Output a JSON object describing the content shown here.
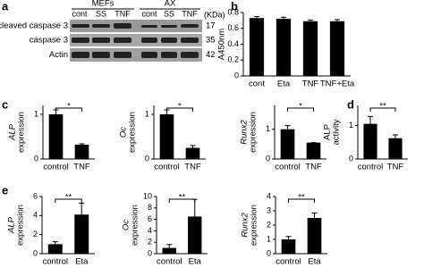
{
  "panels": [
    "a",
    "b",
    "c",
    "d",
    "e"
  ],
  "blot": {
    "groups": [
      "MEFs",
      "AX"
    ],
    "lanes": [
      "cont",
      "SS",
      "TNF",
      "cont",
      "SS",
      "TNF"
    ],
    "unit": "(KDa)",
    "rows": [
      {
        "label": "cleaved caspase 3",
        "kda": "17"
      },
      {
        "label": "caspase 3",
        "kda": "35"
      },
      {
        "label": "Actin",
        "kda": "42"
      }
    ]
  },
  "chart_data": [
    {
      "type": "bar",
      "y_label": [
        "A450nm"
      ],
      "categories": [
        "cont",
        "Eta",
        "TNF",
        "TNF+Eta"
      ],
      "values": [
        0.73,
        0.72,
        0.69,
        0.69
      ],
      "errors": [
        0.02,
        0.02,
        0.015,
        0.02
      ],
      "ylim": [
        0,
        0.8
      ],
      "yticks": [
        0,
        0.2,
        0.4,
        0.6,
        0.8
      ],
      "color": "#000000"
    },
    {
      "type": "bar",
      "y_label": [
        "ALP",
        "expression"
      ],
      "italic_first": true,
      "categories": [
        "control",
        "TNF"
      ],
      "values": [
        1.0,
        0.32
      ],
      "errors": [
        0.1,
        0.02
      ],
      "ylim": [
        0,
        1.2
      ],
      "yticks": [
        0,
        1
      ],
      "annotation": "*",
      "color": "#000000"
    },
    {
      "type": "bar",
      "y_label": [
        "Oc",
        "expression"
      ],
      "italic_first": true,
      "categories": [
        "control",
        "TNF"
      ],
      "values": [
        1.0,
        0.25
      ],
      "errors": [
        0.1,
        0.05
      ],
      "ylim": [
        0,
        1.2
      ],
      "yticks": [
        0,
        1
      ],
      "annotation": "*",
      "color": "#000000"
    },
    {
      "type": "bar",
      "y_label": [
        "Runx2",
        "expression"
      ],
      "italic_first": true,
      "categories": [
        "control",
        "TNF"
      ],
      "values": [
        1.0,
        0.55
      ],
      "errors": [
        0.12,
        0.0
      ],
      "ylim": [
        0,
        1.8
      ],
      "yticks": [
        0,
        1
      ],
      "annotation": "*",
      "color": "#000000"
    },
    {
      "type": "bar",
      "y_label": [
        "ALP",
        "activity"
      ],
      "italic_first": false,
      "categories": [
        "control",
        "TNF"
      ],
      "values": [
        1.05,
        0.62
      ],
      "errors": [
        0.22,
        0.1
      ],
      "ylim": [
        0,
        1.6
      ],
      "yticks": [
        0,
        1
      ],
      "annotation": "**",
      "color": "#000000"
    },
    {
      "type": "bar",
      "y_label": [
        "ALP",
        "expression"
      ],
      "italic_first": true,
      "categories": [
        "control",
        "Eta"
      ],
      "values": [
        1.0,
        4.1
      ],
      "errors": [
        0.25,
        1.2
      ],
      "ylim": [
        0,
        6
      ],
      "yticks": [
        0,
        2,
        4,
        6
      ],
      "annotation": "**",
      "color": "#000000"
    },
    {
      "type": "bar",
      "y_label": [
        "Oc",
        "expression"
      ],
      "italic_first": true,
      "categories": [
        "control",
        "Eta"
      ],
      "values": [
        1.0,
        6.5
      ],
      "errors": [
        0.6,
        3.0
      ],
      "ylim": [
        0,
        10
      ],
      "yticks": [
        0,
        2,
        4,
        6,
        8,
        10
      ],
      "annotation": "**",
      "color": "#000000"
    },
    {
      "type": "bar",
      "y_label": [
        "Runx2",
        "expression"
      ],
      "italic_first": true,
      "categories": [
        "control",
        "Eta"
      ],
      "values": [
        1.0,
        2.5
      ],
      "errors": [
        0.2,
        0.35
      ],
      "ylim": [
        0,
        4
      ],
      "yticks": [
        0,
        1,
        2,
        3,
        4
      ],
      "annotation": "**",
      "color": "#000000"
    }
  ]
}
